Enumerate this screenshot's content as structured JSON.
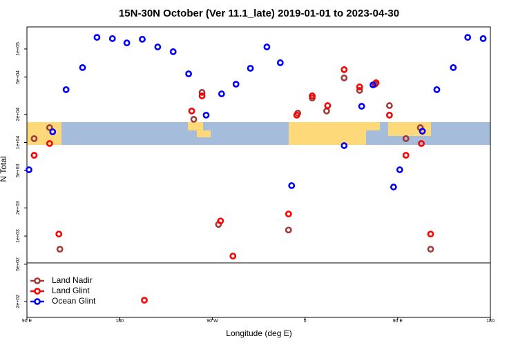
{
  "chart_data": {
    "type": "scatter",
    "title": "15N-30N October (Ver 11.1_late)   2019-01-01 to 2023-04-30",
    "x_label": "Longitude (deg E)",
    "y_label": "N Total",
    "log_y": true,
    "xlim": [
      90,
      540
    ],
    "ylim": [
      135,
      172000
    ],
    "xticks": [
      {
        "value": 90,
        "label": "90 E"
      },
      {
        "value": 180,
        "label": "180"
      },
      {
        "value": 270,
        "label": "90 W"
      },
      {
        "value": 360,
        "label": "0"
      },
      {
        "value": 450,
        "label": "90 E"
      },
      {
        "value": 540,
        "label": "180"
      }
    ],
    "yticks": [
      {
        "value": 200,
        "label": "2e+02"
      },
      {
        "value": 500,
        "label": "5e+02"
      },
      {
        "value": 1000,
        "label": "1e+03"
      },
      {
        "value": 2000,
        "label": "2e+03"
      },
      {
        "value": 5000,
        "label": "5e+03"
      },
      {
        "value": 10000,
        "label": "1e+04"
      },
      {
        "value": 20000,
        "label": "2e+04"
      },
      {
        "value": 50000,
        "label": "5e+04"
      },
      {
        "value": 100000,
        "label": "1e+05"
      }
    ],
    "legend": "lower left",
    "series": [
      {
        "name": "Land Nadir",
        "color": "#a33a3a",
        "x": [
          97,
          112,
          122,
          252,
          260,
          276,
          344,
          353,
          367,
          381,
          398,
          413,
          428,
          442,
          458,
          472,
          482
        ],
        "values": [
          11000,
          14400,
          724,
          17700,
          34300,
          1330,
          1160,
          20600,
          29900,
          21700,
          49000,
          36100,
          42000,
          24800,
          11000,
          14400,
          724
        ]
      },
      {
        "name": "Land Glint",
        "color": "#ff0000",
        "x": [
          97,
          112,
          121,
          204,
          250,
          260,
          278,
          290,
          344,
          352,
          367,
          382,
          398,
          413,
          429,
          442,
          458,
          473,
          482
        ],
        "values": [
          7300,
          9750,
          1050,
          206,
          21700,
          31500,
          1450,
          611,
          1720,
          19600,
          31500,
          24800,
          60100,
          39300,
          43500,
          19600,
          7300,
          9750,
          1050
        ]
      },
      {
        "name": "Ocean Glint",
        "color": "#0000ff",
        "x": [
          92,
          115,
          128,
          144,
          158,
          173,
          187,
          202,
          217,
          232,
          247,
          264,
          279,
          293,
          307,
          323,
          336,
          347,
          398,
          415,
          426,
          446,
          452,
          474,
          488,
          504,
          518,
          533
        ],
        "values": [
          5110,
          13000,
          36700,
          63200,
          133000,
          129000,
          116000,
          127000,
          105000,
          93400,
          54200,
          19600,
          33100,
          42000,
          62100,
          105000,
          71200,
          3460,
          9260,
          24400,
          41300,
          3340,
          5110,
          13200,
          36700,
          63200,
          133000,
          129000
        ]
      }
    ]
  }
}
